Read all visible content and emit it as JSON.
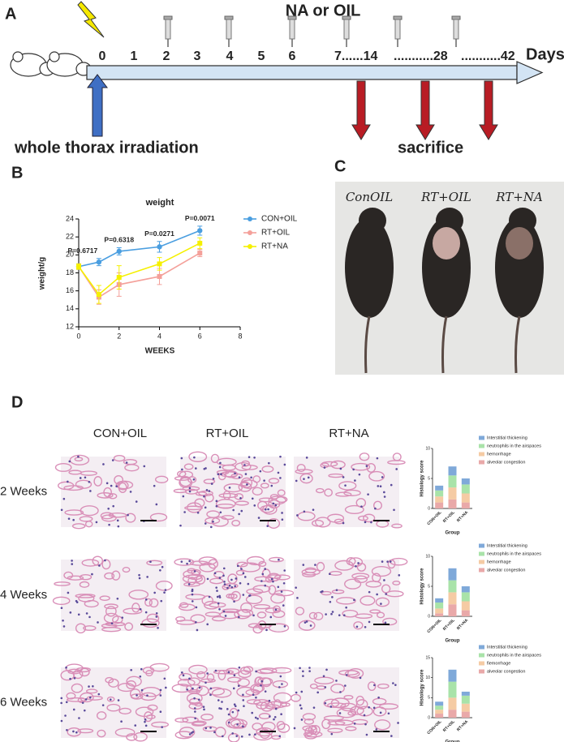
{
  "panels": {
    "a": {
      "label": "A",
      "treatment": "NA or OIL",
      "timeline": [
        "0",
        "1",
        "2",
        "3",
        "4",
        "5",
        "6",
        "7......14",
        "...........28",
        "...........42"
      ],
      "unit": "Days",
      "start_note": "whole thorax irradiation",
      "end_note": "sacrifice"
    },
    "b": {
      "label": "B"
    },
    "c": {
      "label": "C",
      "mouse_labels": [
        "ConOIL",
        "RT+OIL",
        "RT+NA"
      ]
    },
    "d": {
      "label": "D",
      "groups": [
        "CON+OIL",
        "RT+OIL",
        "RT+NA"
      ],
      "rows": [
        "2 Weeks",
        "4 Weeks",
        "6 Weeks"
      ]
    }
  },
  "chart_data": [
    {
      "type": "line",
      "title": "weight",
      "x_label": "WEEKS",
      "y_label": "weight/g",
      "x": [
        0,
        1,
        2,
        4,
        6
      ],
      "xlim": [
        0,
        8
      ],
      "xticks": [
        0,
        2,
        4,
        6,
        8
      ],
      "ylim": [
        12,
        24
      ],
      "yticks": [
        12,
        14,
        16,
        18,
        20,
        22,
        24
      ],
      "annotations": [
        "P=0.6717",
        "P=0.6318",
        "P=0.0271",
        "P=0.0071"
      ],
      "series": [
        {
          "name": "CON+OIL",
          "color": "#4a9ee0",
          "values": [
            18.7,
            19.2,
            20.4,
            20.9,
            22.7
          ],
          "errors": [
            0.3,
            0.4,
            0.4,
            0.6,
            0.5
          ]
        },
        {
          "name": "RT+OIL",
          "color": "#f4a09a",
          "values": [
            18.7,
            15.3,
            16.7,
            17.6,
            20.2
          ],
          "errors": [
            0.3,
            0.8,
            1.3,
            0.9,
            0.4
          ]
        },
        {
          "name": "RT+NA",
          "color": "#f5f000",
          "values": [
            18.7,
            15.6,
            17.5,
            19.0,
            21.3
          ],
          "errors": [
            0.3,
            1.0,
            1.3,
            0.7,
            0.6
          ]
        }
      ]
    },
    {
      "type": "stacked-bar",
      "y_label": "Histology score",
      "x_label": "Group",
      "categories": [
        "CON+OIL",
        "RT+OIL",
        "RT+NA"
      ],
      "ylim": [
        0,
        10
      ],
      "yticks": [
        0,
        5,
        10
      ],
      "series": [
        {
          "name": "alveolar congestion",
          "color": "#e9a9a9",
          "values": [
            1,
            1.5,
            1
          ]
        },
        {
          "name": "hemorrhage",
          "color": "#f5cba4",
          "values": [
            1,
            2,
            1.5
          ]
        },
        {
          "name": "neutrophils in the airspaces",
          "color": "#a9e3a9",
          "values": [
            1,
            2,
            1.5
          ]
        },
        {
          "name": "Interstitial thickening",
          "color": "#7fa9d9",
          "values": [
            0.8,
            1.5,
            1
          ]
        }
      ]
    },
    {
      "type": "stacked-bar",
      "y_label": "Histology score",
      "x_label": "Group",
      "categories": [
        "CON+OIL",
        "RT+OIL",
        "RT+NA"
      ],
      "ylim": [
        0,
        10
      ],
      "yticks": [
        0,
        5,
        10
      ],
      "series": [
        {
          "name": "alveolar congestion",
          "color": "#e9a9a9",
          "values": [
            0.5,
            2,
            1
          ]
        },
        {
          "name": "hemorrhage",
          "color": "#f5cba4",
          "values": [
            0.8,
            2,
            1.5
          ]
        },
        {
          "name": "neutrophils in the airspaces",
          "color": "#a9e3a9",
          "values": [
            1,
            2,
            1.5
          ]
        },
        {
          "name": "Interstitial thickening",
          "color": "#7fa9d9",
          "values": [
            0.7,
            2,
            1
          ]
        }
      ]
    },
    {
      "type": "stacked-bar",
      "y_label": "Histology score",
      "x_label": "Group",
      "categories": [
        "CON+OIL",
        "RT+OIL",
        "RT+NA"
      ],
      "ylim": [
        0,
        15
      ],
      "yticks": [
        0,
        5,
        10,
        15
      ],
      "series": [
        {
          "name": "alveolar congestion",
          "color": "#e9a9a9",
          "values": [
            1,
            2,
            1.5
          ]
        },
        {
          "name": "fiemorrhage",
          "color": "#f5cba4",
          "values": [
            1,
            3,
            2
          ]
        },
        {
          "name": "neutrophils in the airspaces",
          "color": "#a9e3a9",
          "values": [
            1,
            4,
            2
          ]
        },
        {
          "name": "Interstitial thickening",
          "color": "#7fa9d9",
          "values": [
            1,
            3,
            1
          ]
        }
      ]
    }
  ]
}
